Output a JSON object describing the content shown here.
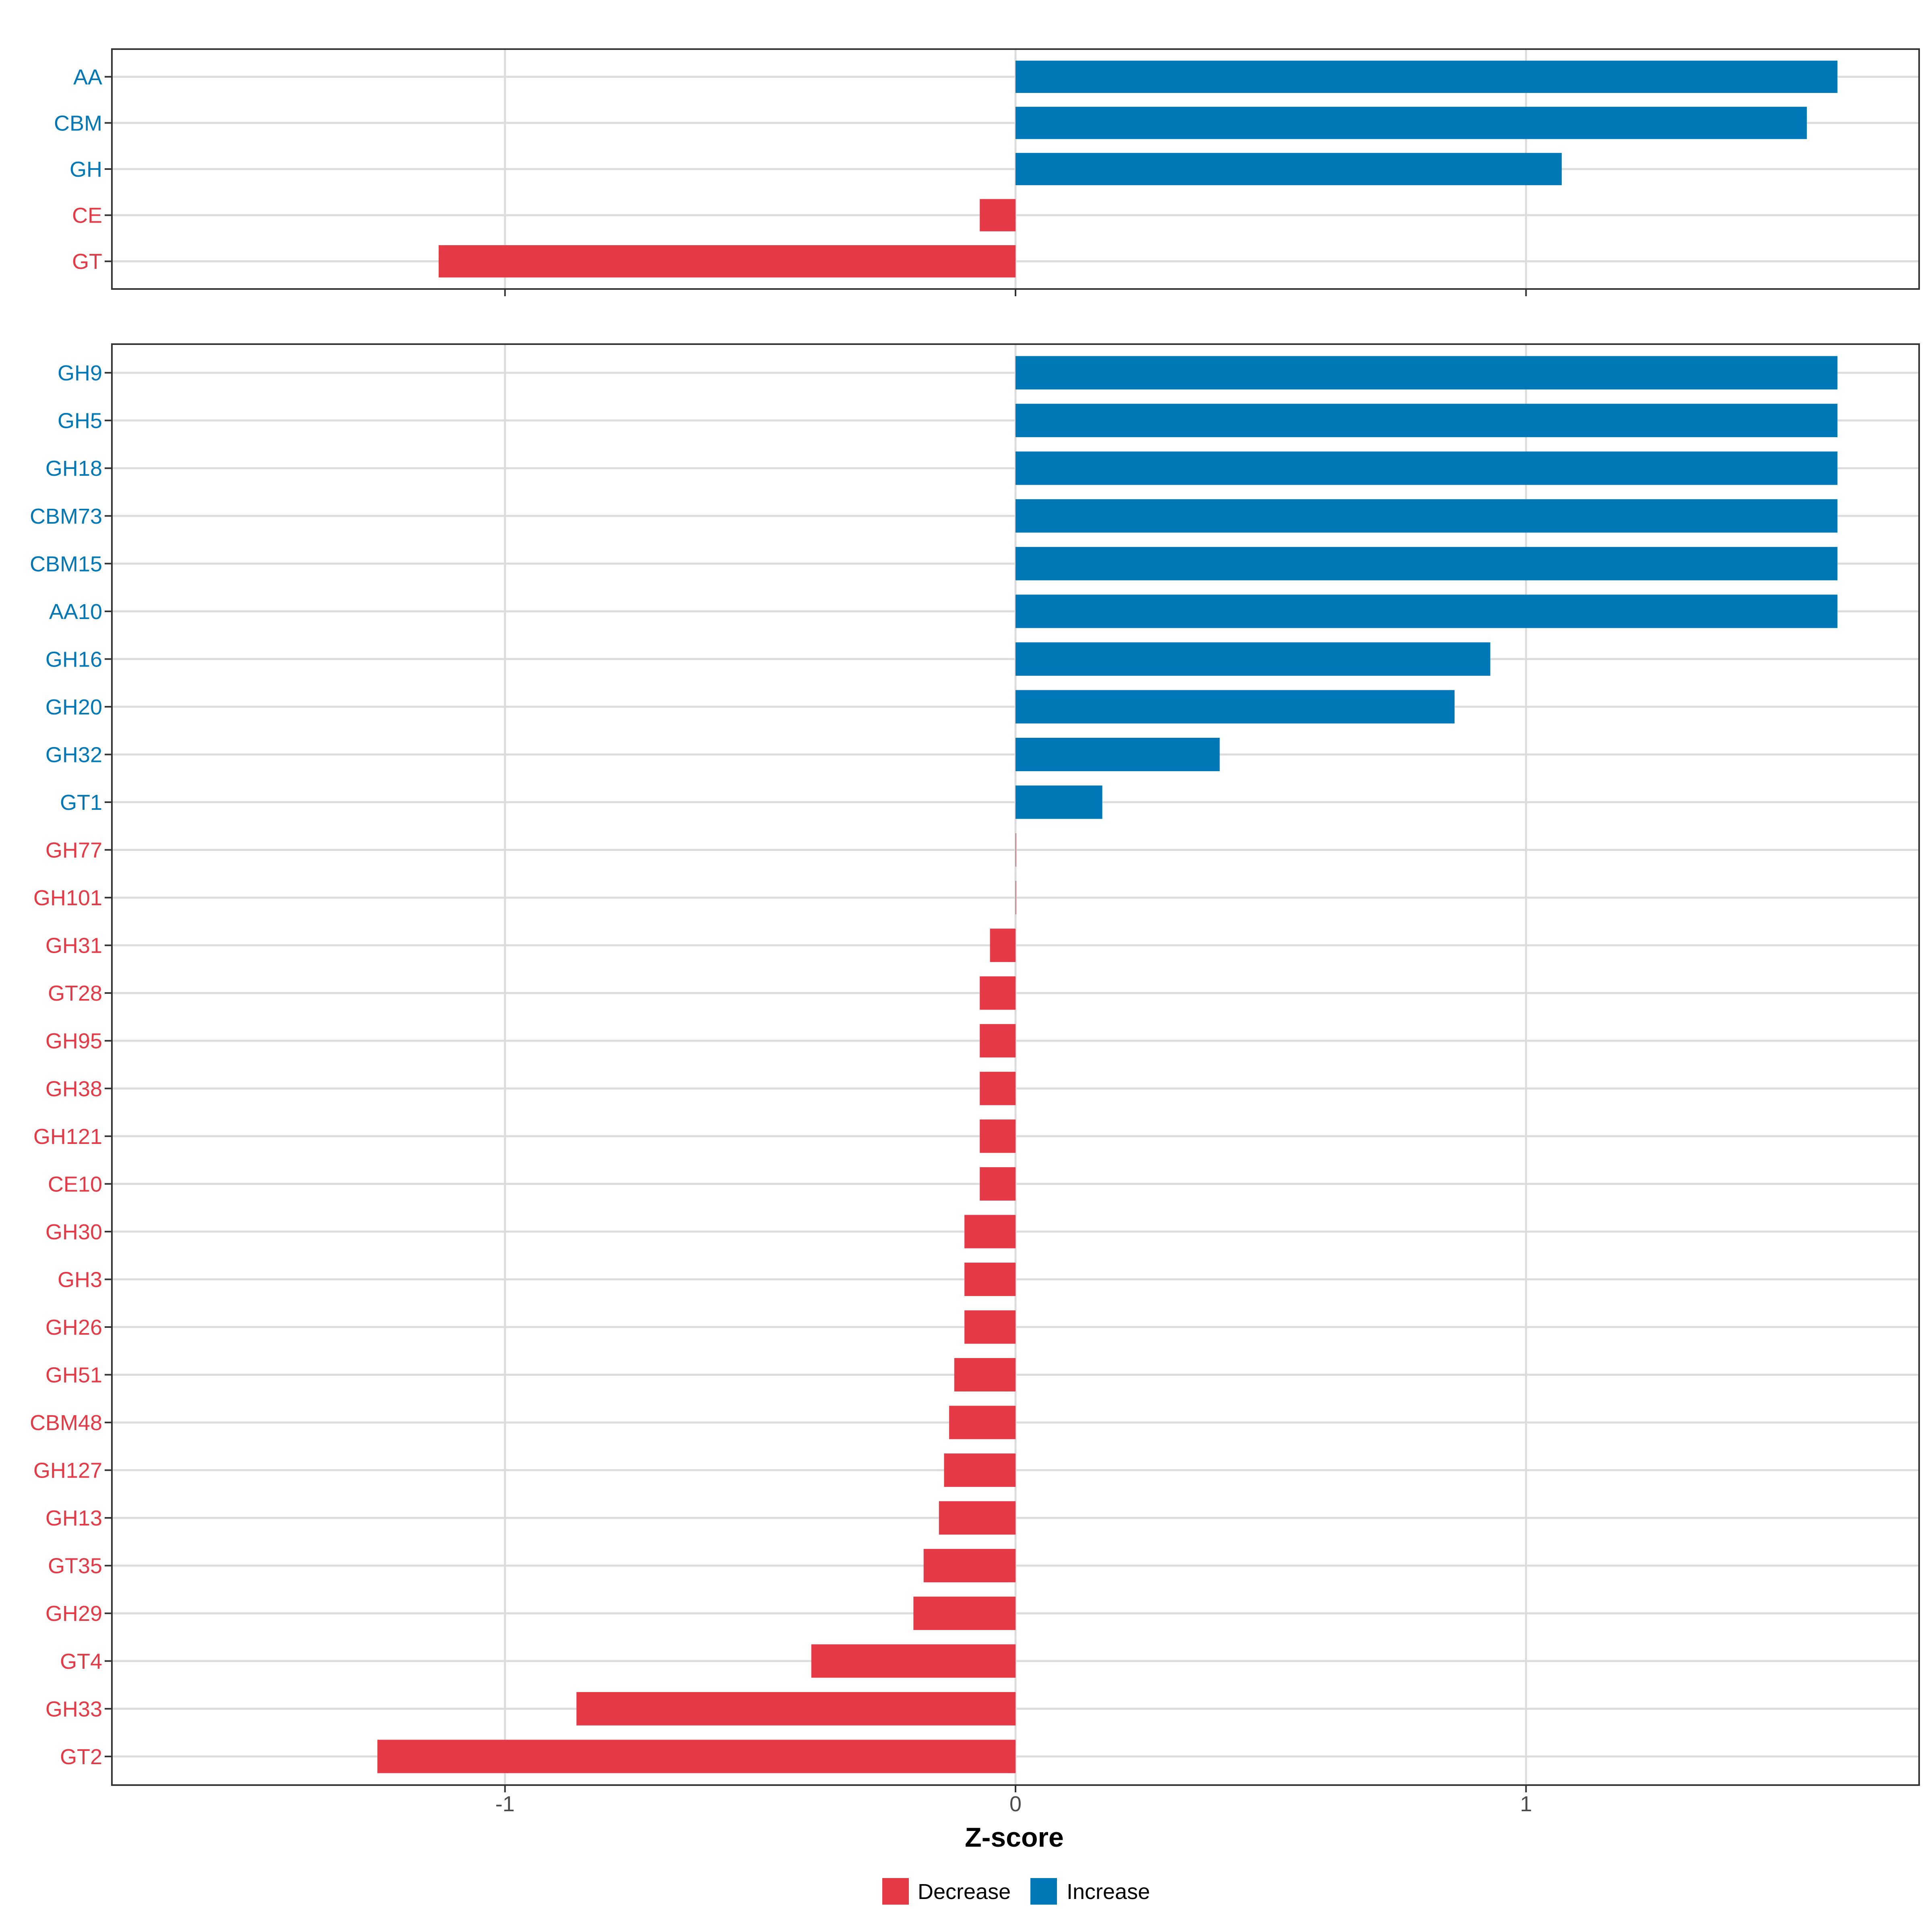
{
  "colors": {
    "decrease": "#e63946",
    "increase": "#0077b6",
    "grid": "#dcdcdc",
    "panel_border": "#333333",
    "tick": "#333333"
  },
  "chart_data": [
    {
      "type": "bar",
      "orientation": "horizontal",
      "panel": "top",
      "categories": [
        "AA",
        "CBM",
        "GH",
        "CE",
        "GT"
      ],
      "values": [
        1.61,
        1.55,
        1.07,
        -0.07,
        -1.13
      ],
      "groups": [
        "Increase",
        "Increase",
        "Increase",
        "Decrease",
        "Decrease"
      ],
      "xlim": [
        -1.77,
        1.77
      ]
    },
    {
      "type": "bar",
      "orientation": "horizontal",
      "panel": "bottom",
      "categories": [
        "GH9",
        "GH5",
        "GH18",
        "CBM73",
        "CBM15",
        "AA10",
        "GH16",
        "GH20",
        "GH32",
        "GT1",
        "GH77",
        "GH101",
        "GH31",
        "GT28",
        "GH95",
        "GH38",
        "GH121",
        "CE10",
        "GH30",
        "GH3",
        "GH26",
        "GH51",
        "CBM48",
        "GH127",
        "GH13",
        "GT35",
        "GH29",
        "GT4",
        "GH33",
        "GT2"
      ],
      "values": [
        1.61,
        1.61,
        1.61,
        1.61,
        1.61,
        1.61,
        0.93,
        0.86,
        0.4,
        0.17,
        0.0,
        0.0,
        -0.05,
        -0.07,
        -0.07,
        -0.07,
        -0.07,
        -0.07,
        -0.1,
        -0.1,
        -0.1,
        -0.12,
        -0.13,
        -0.14,
        -0.15,
        -0.18,
        -0.2,
        -0.4,
        -0.86,
        -1.25
      ],
      "groups": [
        "Increase",
        "Increase",
        "Increase",
        "Increase",
        "Increase",
        "Increase",
        "Increase",
        "Increase",
        "Increase",
        "Increase",
        "Decrease",
        "Decrease",
        "Decrease",
        "Decrease",
        "Decrease",
        "Decrease",
        "Decrease",
        "Decrease",
        "Decrease",
        "Decrease",
        "Decrease",
        "Decrease",
        "Decrease",
        "Decrease",
        "Decrease",
        "Decrease",
        "Decrease",
        "Decrease",
        "Decrease",
        "Decrease"
      ],
      "xlim": [
        -1.77,
        1.77
      ]
    }
  ],
  "x_axis": {
    "title": "Z-score",
    "ticks": [
      -1,
      0,
      1
    ],
    "tick_labels": [
      "-1",
      "0",
      "1"
    ]
  },
  "legend": {
    "position": "bottom",
    "items": [
      {
        "label": "Decrease",
        "color": "#e63946"
      },
      {
        "label": "Increase",
        "color": "#0077b6"
      }
    ]
  }
}
